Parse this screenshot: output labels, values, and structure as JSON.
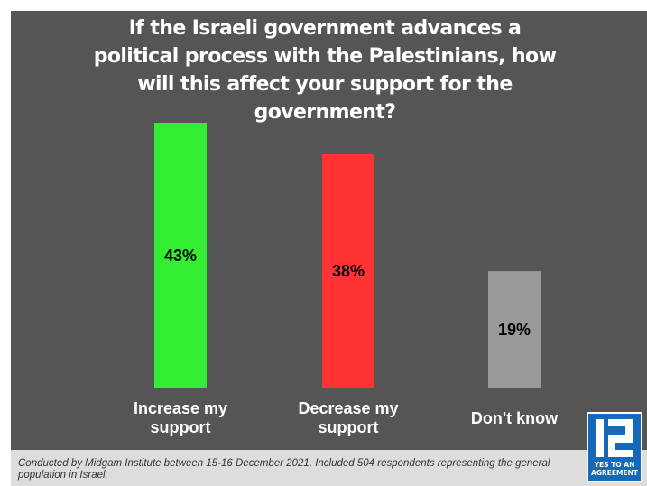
{
  "chart_data": {
    "type": "bar",
    "title": "If the Israeli government advances a political process with the Palestinians, how will this affect your support for the government?",
    "categories": [
      "Increase my support",
      "Decrease my support",
      "Don't know"
    ],
    "values": [
      43,
      38,
      19
    ],
    "value_labels": [
      "43%",
      "38%",
      "19%"
    ],
    "unit": "%",
    "colors": [
      "#33ee33",
      "#ff3333",
      "#999999"
    ],
    "label_colors": [
      "#000000",
      "#000000",
      "#000000"
    ],
    "ylim": [
      0,
      43
    ],
    "grid": false,
    "legend": "none"
  },
  "footer": {
    "note": "Conducted by Midgam Institute between 15-16 December 2021. Included 504 respondents representing the general population in Israel."
  },
  "logo": {
    "text": "YES TO AN AGREEMENT"
  },
  "colors": {
    "background": "#555555",
    "footer_background": "#dddddd",
    "logo_blue": "#1668b8"
  }
}
